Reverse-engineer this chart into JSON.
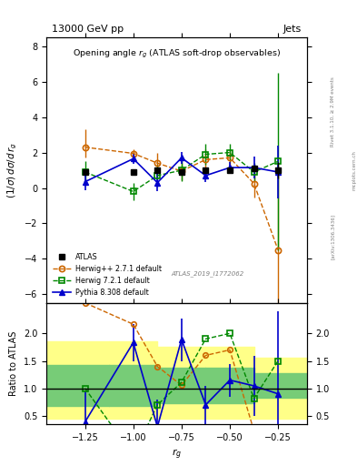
{
  "title_top": "13000 GeV pp",
  "title_right": "Jets",
  "plot_title": "Opening angle r_g (ATLAS soft-drop observables)",
  "xlabel": "r_g",
  "ylabel_main": "(1/σ) dσ/d r_g",
  "ylabel_ratio": "Ratio to ATLAS",
  "rivet_label": "Rivet 3.1.10, ≥ 2.9M events",
  "arxiv_label": "[arXiv:1306.3436]",
  "mcplots_label": "mcplots.cern.ch",
  "ref_label": "ATLAS_2019_I1772062",
  "x_values": [
    -1.25,
    -1.0,
    -0.875,
    -0.75,
    -0.625,
    -0.5,
    -0.375,
    -0.25
  ],
  "atlas_y": [
    0.9,
    0.9,
    1.0,
    0.9,
    1.0,
    1.0,
    1.1,
    1.0
  ],
  "atlas_yerr_lo": [
    0.15,
    0.15,
    0.15,
    0.15,
    0.15,
    0.15,
    0.15,
    0.45
  ],
  "atlas_yerr_hi": [
    0.15,
    0.15,
    0.15,
    0.15,
    0.15,
    0.15,
    0.15,
    0.45
  ],
  "herwig_pp_y": [
    2.3,
    1.95,
    1.4,
    0.95,
    1.6,
    1.7,
    0.25,
    -3.5
  ],
  "herwig_pp_yerr_lo": [
    0.6,
    0.25,
    0.6,
    0.5,
    0.6,
    0.5,
    0.8,
    4.5
  ],
  "herwig_pp_yerr_hi": [
    1.0,
    0.25,
    0.6,
    0.5,
    0.6,
    0.5,
    0.8,
    4.5
  ],
  "herwig72_y": [
    0.9,
    -0.2,
    0.7,
    1.0,
    1.9,
    2.0,
    0.9,
    1.5
  ],
  "herwig72_yerr_lo": [
    0.6,
    0.5,
    0.6,
    0.6,
    0.6,
    0.5,
    0.5,
    5.0
  ],
  "herwig72_yerr_hi": [
    0.6,
    0.5,
    0.6,
    0.6,
    0.6,
    0.5,
    0.5,
    5.0
  ],
  "pythia_y": [
    0.35,
    1.65,
    0.3,
    1.7,
    0.7,
    1.15,
    1.15,
    0.9
  ],
  "pythia_yerr_lo": [
    0.5,
    0.3,
    0.5,
    0.35,
    0.35,
    0.3,
    0.6,
    1.5
  ],
  "pythia_yerr_hi": [
    0.5,
    0.3,
    0.5,
    0.35,
    0.35,
    0.3,
    0.6,
    1.5
  ],
  "atlas_color": "#000000",
  "herwig_pp_color": "#cc6600",
  "herwig72_color": "#008800",
  "pythia_color": "#0000cc",
  "ylim_main": [
    -6.5,
    8.5
  ],
  "ylim_ratio": [
    0.35,
    2.55
  ],
  "xlim": [
    -1.45,
    -0.1
  ],
  "yticks_main": [
    -6,
    -4,
    -2,
    0,
    2,
    4,
    6,
    8
  ],
  "yticks_ratio": [
    0.5,
    1.0,
    1.5,
    2.0
  ],
  "band_x_edges": [
    -1.45,
    -1.125,
    -0.875,
    -0.625,
    -0.375,
    -0.1
  ],
  "yellow_lo": [
    0.45,
    0.45,
    0.45,
    0.45,
    0.45,
    0.45
  ],
  "yellow_hi": [
    1.85,
    1.85,
    1.75,
    1.75,
    1.55,
    1.55
  ],
  "green_lo": [
    0.68,
    0.68,
    0.73,
    0.73,
    0.83,
    0.83
  ],
  "green_hi": [
    1.42,
    1.42,
    1.37,
    1.37,
    1.27,
    1.27
  ],
  "background_color": "#ffffff"
}
